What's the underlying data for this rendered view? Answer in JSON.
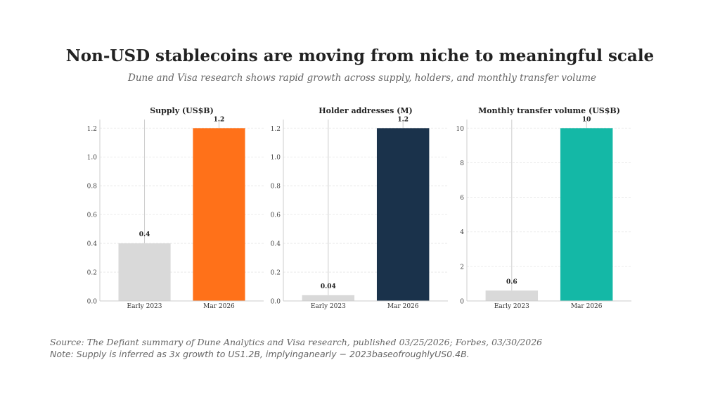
{
  "title": "Non-USD stablecoins are moving from niche to meaningful scale",
  "subtitle": "Dune and Visa research shows rapid growth across supply, holders, and monthly transfer volume",
  "footer": {
    "source": "Source: The Defiant summary of Dune Analytics and Visa research, published 03/25/2026; Forbes, 03/30/2026",
    "note": "Note: Supply is inferred as 3x growth to US1.2B, implyinganearly − 2023baseofroughlyUS0.4B."
  },
  "colors": {
    "baseline_bar": "#d9d9d9",
    "supply": "#ff7119",
    "holders": "#1a324b",
    "volume": "#14b8a6"
  },
  "chart_data": [
    {
      "type": "bar",
      "title": "Supply (US$B)",
      "categories": [
        "Early 2023",
        "Mar 2026"
      ],
      "values": [
        0.4,
        1.2
      ],
      "labels": [
        "0.4",
        "1.2"
      ],
      "colors": [
        "#d9d9d9",
        "#ff7119"
      ],
      "ylim": [
        0,
        1.26
      ],
      "yticks": [
        0.0,
        0.2,
        0.4,
        0.6,
        0.8,
        1.0,
        1.2
      ],
      "ytick_labels": [
        "0.0",
        "0.2",
        "0.4",
        "0.6",
        "0.8",
        "1.0",
        "1.2"
      ],
      "xlabel": "",
      "ylabel": "",
      "grid": true
    },
    {
      "type": "bar",
      "title": "Holder addresses (M)",
      "categories": [
        "Early 2023",
        "Mar 2026"
      ],
      "values": [
        0.04,
        1.2
      ],
      "labels": [
        "0.04",
        "1.2"
      ],
      "colors": [
        "#d9d9d9",
        "#1a324b"
      ],
      "ylim": [
        0,
        1.26
      ],
      "yticks": [
        0.0,
        0.2,
        0.4,
        0.6,
        0.8,
        1.0,
        1.2
      ],
      "ytick_labels": [
        "0.0",
        "0.2",
        "0.4",
        "0.6",
        "0.8",
        "1.0",
        "1.2"
      ],
      "xlabel": "",
      "ylabel": "",
      "grid": true
    },
    {
      "type": "bar",
      "title": "Monthly transfer volume (US$B)",
      "categories": [
        "Early 2023",
        "Mar 2026"
      ],
      "values": [
        0.6,
        10
      ],
      "labels": [
        "0.6",
        "10"
      ],
      "colors": [
        "#d9d9d9",
        "#14b8a6"
      ],
      "ylim": [
        0,
        10.5
      ],
      "yticks": [
        0,
        2,
        4,
        6,
        8,
        10
      ],
      "ytick_labels": [
        "0",
        "2",
        "4",
        "6",
        "8",
        "10"
      ],
      "xlabel": "",
      "ylabel": "",
      "grid": true
    }
  ]
}
